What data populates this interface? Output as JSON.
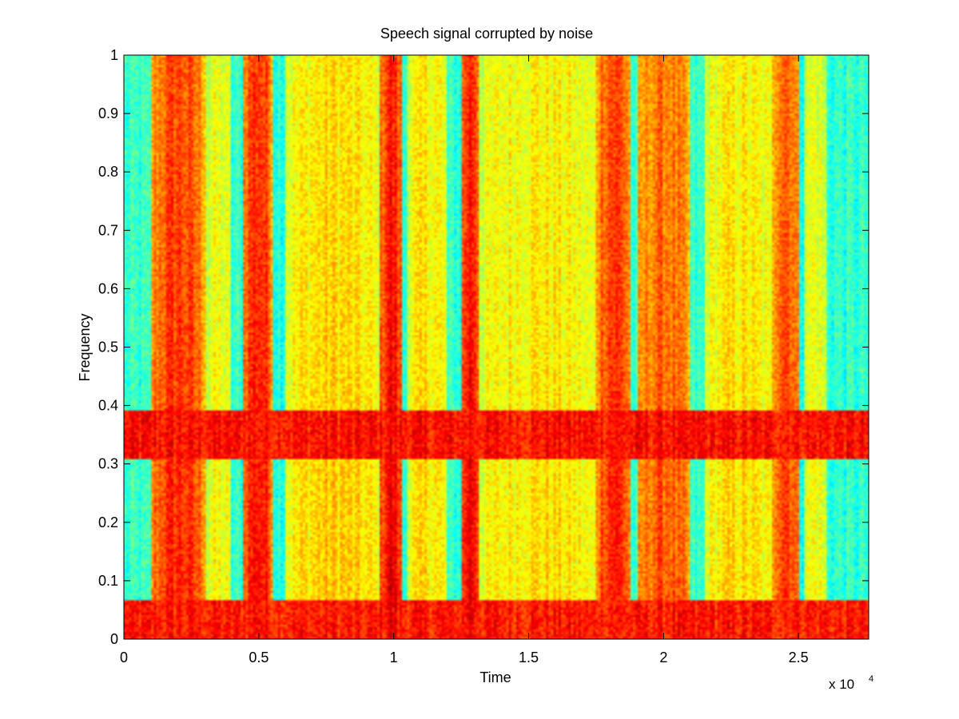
{
  "chart_data": {
    "type": "heatmap",
    "title": "Speech signal corrupted by noise",
    "xlabel": "Time",
    "ylabel": "Frequency",
    "x_exponent_label": "x 10",
    "x_exponent_power": "4",
    "xlim": [
      0,
      2.76
    ],
    "ylim": [
      0,
      1
    ],
    "xticks": [
      {
        "value": 0,
        "label": "0"
      },
      {
        "value": 0.5,
        "label": "0.5"
      },
      {
        "value": 1,
        "label": "1"
      },
      {
        "value": 1.5,
        "label": "1.5"
      },
      {
        "value": 2,
        "label": "2"
      },
      {
        "value": 2.5,
        "label": "2.5"
      }
    ],
    "yticks": [
      {
        "value": 0,
        "label": "0"
      },
      {
        "value": 0.1,
        "label": "0.1"
      },
      {
        "value": 0.2,
        "label": "0.2"
      },
      {
        "value": 0.3,
        "label": "0.3"
      },
      {
        "value": 0.4,
        "label": "0.4"
      },
      {
        "value": 0.5,
        "label": "0.5"
      },
      {
        "value": 0.6,
        "label": "0.6"
      },
      {
        "value": 0.7,
        "label": "0.7"
      },
      {
        "value": 0.8,
        "label": "0.8"
      },
      {
        "value": 0.9,
        "label": "0.9"
      },
      {
        "value": 1,
        "label": "1"
      }
    ],
    "colormap": "jet",
    "grid": false,
    "legend": "none",
    "noise_bands": [
      {
        "y_range": [
          0.31,
          0.39
        ],
        "level": 0.86
      },
      {
        "y_range": [
          0.0,
          0.065
        ],
        "level": 0.85
      }
    ],
    "speech_columns": [
      {
        "x_range": [
          0.1,
          0.3
        ],
        "level": 0.85
      },
      {
        "x_range": [
          0.3,
          0.4
        ],
        "level": 0.62
      },
      {
        "x_range": [
          0.44,
          0.55
        ],
        "level": 0.88
      },
      {
        "x_range": [
          0.6,
          0.95
        ],
        "level": 0.68
      },
      {
        "x_range": [
          0.95,
          1.03
        ],
        "level": 0.9
      },
      {
        "x_range": [
          1.05,
          1.2
        ],
        "level": 0.66
      },
      {
        "x_range": [
          1.25,
          1.32
        ],
        "level": 0.9
      },
      {
        "x_range": [
          1.32,
          1.75
        ],
        "level": 0.66
      },
      {
        "x_range": [
          1.75,
          1.88
        ],
        "level": 0.86
      },
      {
        "x_range": [
          1.9,
          2.1
        ],
        "level": 0.8
      },
      {
        "x_range": [
          2.15,
          2.4
        ],
        "level": 0.66
      },
      {
        "x_range": [
          2.4,
          2.5
        ],
        "level": 0.84
      },
      {
        "x_range": [
          2.52,
          2.6
        ],
        "level": 0.62
      }
    ],
    "colors": {
      "background": "#ffffff",
      "axis": "#000000"
    }
  }
}
